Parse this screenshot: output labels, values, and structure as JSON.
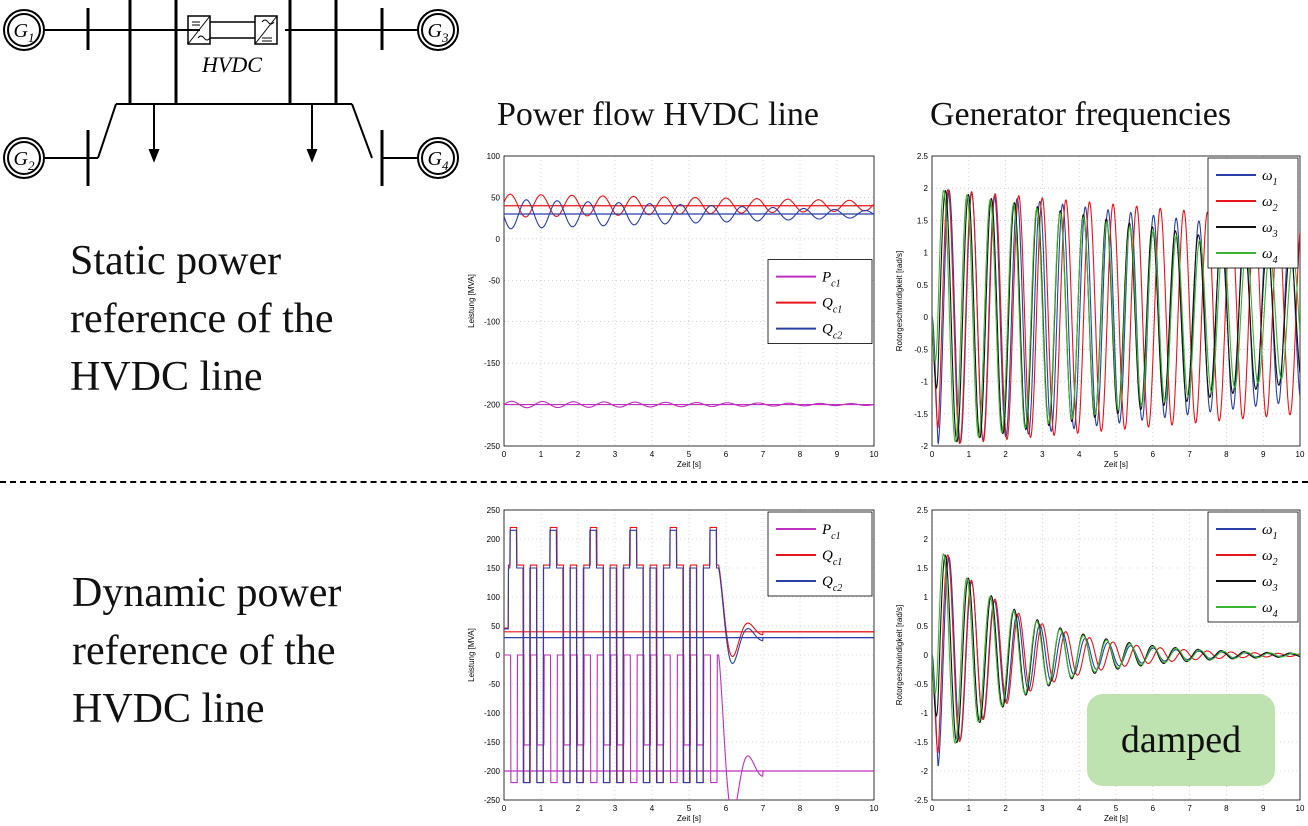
{
  "diagram": {
    "generators": [
      "G1",
      "G2",
      "G3",
      "G4"
    ],
    "hvdc_label": "HVDC"
  },
  "headings": {
    "power_flow": "Power flow HVDC line",
    "gen_freq": "Generator frequencies"
  },
  "row_labels": {
    "static": [
      "Static power",
      "reference of the",
      "HVDC line"
    ],
    "dynamic": [
      "Dynamic power",
      "reference of the",
      "HVDC line"
    ]
  },
  "annotation": "damped",
  "colors": {
    "Pc1": "#bf2fbf",
    "Qc1": "#e8141a",
    "Qc2": "#2a3fa6",
    "w1": "#2a3fa6",
    "w2": "#e8141a",
    "w3": "#111111",
    "w4": "#3bb52f"
  },
  "chart_data": [
    {
      "id": "static-power",
      "type": "line",
      "xlabel": "Zeit [s]",
      "ylabel": "Leistung [MVA]",
      "xlim": [
        0,
        10
      ],
      "ylim": [
        -250,
        100
      ],
      "xticks": [
        0,
        1,
        2,
        3,
        4,
        5,
        6,
        7,
        8,
        9,
        10
      ],
      "yticks": [
        100,
        50,
        0,
        -50,
        -100,
        -150,
        -200,
        -250
      ],
      "grid": true,
      "legend_position": "right",
      "legend": [
        {
          "sym": "P",
          "sub": "c1",
          "key": "Pc1"
        },
        {
          "sym": "Q",
          "sub": "c1",
          "key": "Qc1"
        },
        {
          "sym": "Q",
          "sub": "c2",
          "key": "Qc2"
        }
      ],
      "series": [
        {
          "key": "Pc1",
          "kind": "sine",
          "base": -200,
          "amp": [
            4,
            1
          ],
          "freq": 1.2,
          "ref": -200
        },
        {
          "key": "Qc1",
          "kind": "sine",
          "base": 40,
          "amp": [
            14,
            6
          ],
          "freq": 1.2,
          "phase": 0.3,
          "ref": 40
        },
        {
          "key": "Qc2",
          "kind": "sine",
          "base": 30,
          "amp": [
            18,
            4
          ],
          "freq": 1.2,
          "phase": 3.3,
          "ref": 30
        }
      ]
    },
    {
      "id": "static-freq",
      "type": "line",
      "xlabel": "Zeit [s]",
      "ylabel": "Rotorgeschwindigkeit [rad/s]",
      "xlim": [
        0,
        10
      ],
      "ylim": [
        -2,
        2.5
      ],
      "xticks": [
        0,
        1,
        2,
        3,
        4,
        5,
        6,
        7,
        8,
        9,
        10
      ],
      "yticks": [
        2.5,
        2,
        1.5,
        1,
        0.5,
        0,
        -0.5,
        -1,
        -1.5,
        -2
      ],
      "grid": true,
      "legend_position": "top-right",
      "legend": [
        {
          "sym": "ω",
          "sub": "1",
          "key": "w1"
        },
        {
          "sym": "ω",
          "sub": "2",
          "key": "w2"
        },
        {
          "sym": "ω",
          "sub": "3",
          "key": "w3"
        },
        {
          "sym": "ω",
          "sub": "4",
          "key": "w4"
        }
      ],
      "series": [
        {
          "key": "w1",
          "kind": "osc",
          "amp": [
            2.0,
            1.3
          ],
          "freq": 1.62,
          "phase": 3.14
        },
        {
          "key": "w2",
          "kind": "osc",
          "amp": [
            2.0,
            1.5
          ],
          "freq": 1.56,
          "phase": 3.6
        },
        {
          "key": "w3",
          "kind": "osc",
          "amp": [
            2.0,
            1.0
          ],
          "freq": 1.6,
          "phase": 4.2
        },
        {
          "key": "w4",
          "kind": "osc",
          "amp": [
            2.0,
            0.9
          ],
          "freq": 1.58,
          "phase": 4.7
        }
      ]
    },
    {
      "id": "dynamic-power",
      "type": "line",
      "xlabel": "Zeit [s]",
      "ylabel": "Leistung [MVA]",
      "xlim": [
        0,
        10
      ],
      "ylim": [
        -250,
        250
      ],
      "xticks": [
        0,
        1,
        2,
        3,
        4,
        5,
        6,
        7,
        8,
        9,
        10
      ],
      "yticks": [
        250,
        200,
        150,
        100,
        50,
        0,
        -50,
        -100,
        -150,
        -200,
        -250
      ],
      "grid": true,
      "legend_position": "top-right",
      "legend": [
        {
          "sym": "P",
          "sub": "c1",
          "key": "Pc1"
        },
        {
          "sym": "Q",
          "sub": "c1",
          "key": "Qc1"
        },
        {
          "sym": "Q",
          "sub": "c2",
          "key": "Qc2"
        }
      ],
      "series": [
        {
          "key": "Pc1",
          "kind": "bang",
          "hi": 0,
          "lo": -155,
          "alt": -220,
          "settle": -200,
          "ref": -200
        },
        {
          "key": "Qc1",
          "kind": "bang",
          "hi": 155,
          "lo": -220,
          "alt": 220,
          "settle": 40,
          "ref": 40
        },
        {
          "key": "Qc2",
          "kind": "bang",
          "hi": 150,
          "lo": -220,
          "alt": 215,
          "settle": 30,
          "ref": 30
        }
      ]
    },
    {
      "id": "dynamic-freq",
      "type": "line",
      "xlabel": "Zeit [s]",
      "ylabel": "Rotorgeschwindigkeit [rad/s]",
      "xlim": [
        0,
        10
      ],
      "ylim": [
        -2.5,
        2.5
      ],
      "xticks": [
        0,
        1,
        2,
        3,
        4,
        5,
        6,
        7,
        8,
        9,
        10
      ],
      "yticks": [
        2.5,
        2,
        1.5,
        1,
        0.5,
        0,
        -0.5,
        -1,
        -1.5,
        -2,
        -2.5
      ],
      "grid": true,
      "legend_position": "top-right",
      "legend": [
        {
          "sym": "ω",
          "sub": "1",
          "key": "w1"
        },
        {
          "sym": "ω",
          "sub": "2",
          "key": "w2"
        },
        {
          "sym": "ω",
          "sub": "3",
          "key": "w3"
        },
        {
          "sym": "ω",
          "sub": "4",
          "key": "w4"
        }
      ],
      "series": [
        {
          "key": "w1",
          "kind": "damp",
          "amp": 2.1,
          "freq": 1.62,
          "phase": 3.14,
          "tau": 2.1
        },
        {
          "key": "w2",
          "kind": "damp",
          "amp": 2.1,
          "freq": 1.56,
          "phase": 3.6,
          "tau": 2.2
        },
        {
          "key": "w3",
          "kind": "damp",
          "amp": 2.0,
          "freq": 1.6,
          "phase": 4.2,
          "tau": 2.4
        },
        {
          "key": "w4",
          "kind": "damp",
          "amp": 2.0,
          "freq": 1.58,
          "phase": 4.7,
          "tau": 2.3
        }
      ]
    }
  ]
}
